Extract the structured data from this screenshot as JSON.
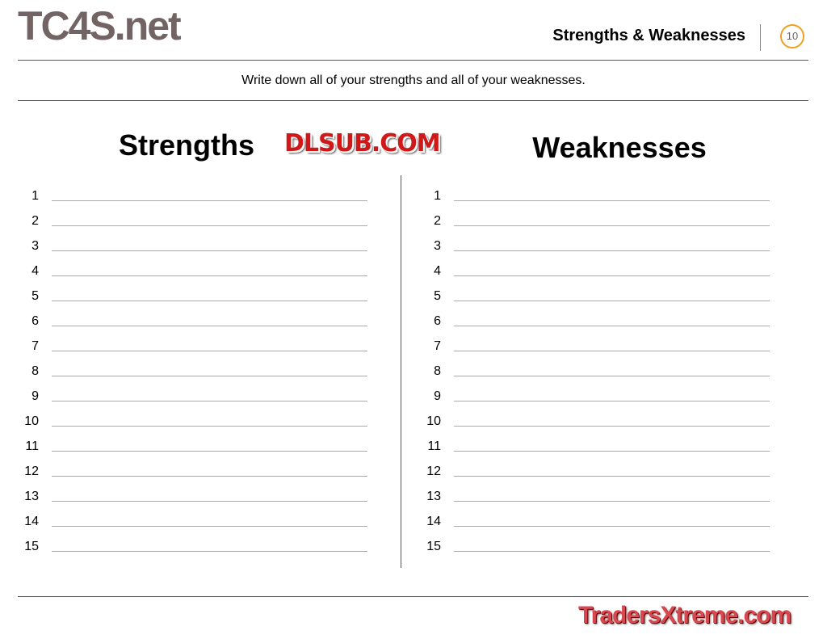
{
  "header": {
    "title": "Strengths & Weaknesses",
    "page_number": "10"
  },
  "instructions": "Write down all of your strengths and all of your weaknesses.",
  "columns": [
    {
      "heading": "Strengths",
      "rows": [
        "1",
        "2",
        "3",
        "4",
        "5",
        "6",
        "7",
        "8",
        "9",
        "10",
        "11",
        "12",
        "13",
        "14",
        "15"
      ]
    },
    {
      "heading": "Weaknesses",
      "rows": [
        "1",
        "2",
        "3",
        "4",
        "5",
        "6",
        "7",
        "8",
        "9",
        "10",
        "11",
        "12",
        "13",
        "14",
        "15"
      ]
    }
  ],
  "watermarks": {
    "top": "TC4S.net",
    "center": "DLSUB.COM",
    "bottom": "TradersXtreme.com"
  },
  "colors": {
    "accent": "#f0a020",
    "watermark_red": "#d01818"
  }
}
